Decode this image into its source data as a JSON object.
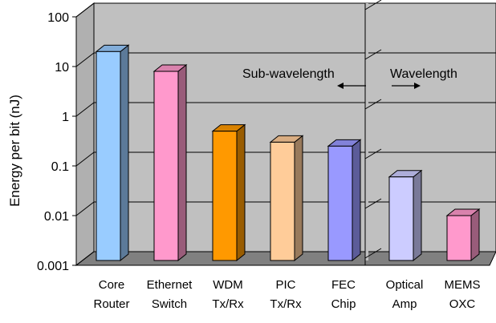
{
  "chart_data": {
    "type": "bar",
    "style": "3d",
    "ylabel": "Energy per bit (nJ)",
    "yscale": "log",
    "ylim": [
      0.001,
      100
    ],
    "yticks": [
      "100",
      "10",
      "1",
      "0.1",
      "0.01",
      "0.001"
    ],
    "grid": true,
    "categories": [
      [
        "Core",
        "Router"
      ],
      [
        "Ethernet",
        "Switch"
      ],
      [
        "WDM",
        "Tx/Rx"
      ],
      [
        "PIC",
        "Tx/Rx"
      ],
      [
        "FEC",
        "Chip"
      ],
      [
        "Optical",
        "Amp"
      ],
      [
        "MEMS",
        "OXC"
      ]
    ],
    "values": [
      20,
      8,
      0.5,
      0.3,
      0.25,
      0.06,
      0.01
    ],
    "colors": [
      "#99ccff",
      "#ff99cc",
      "#ff9900",
      "#ffcc99",
      "#9999ff",
      "#ccccff",
      "#ff99cc"
    ],
    "annotations": {
      "left_region": "Sub-wavelength",
      "right_region": "Wavelength"
    }
  }
}
